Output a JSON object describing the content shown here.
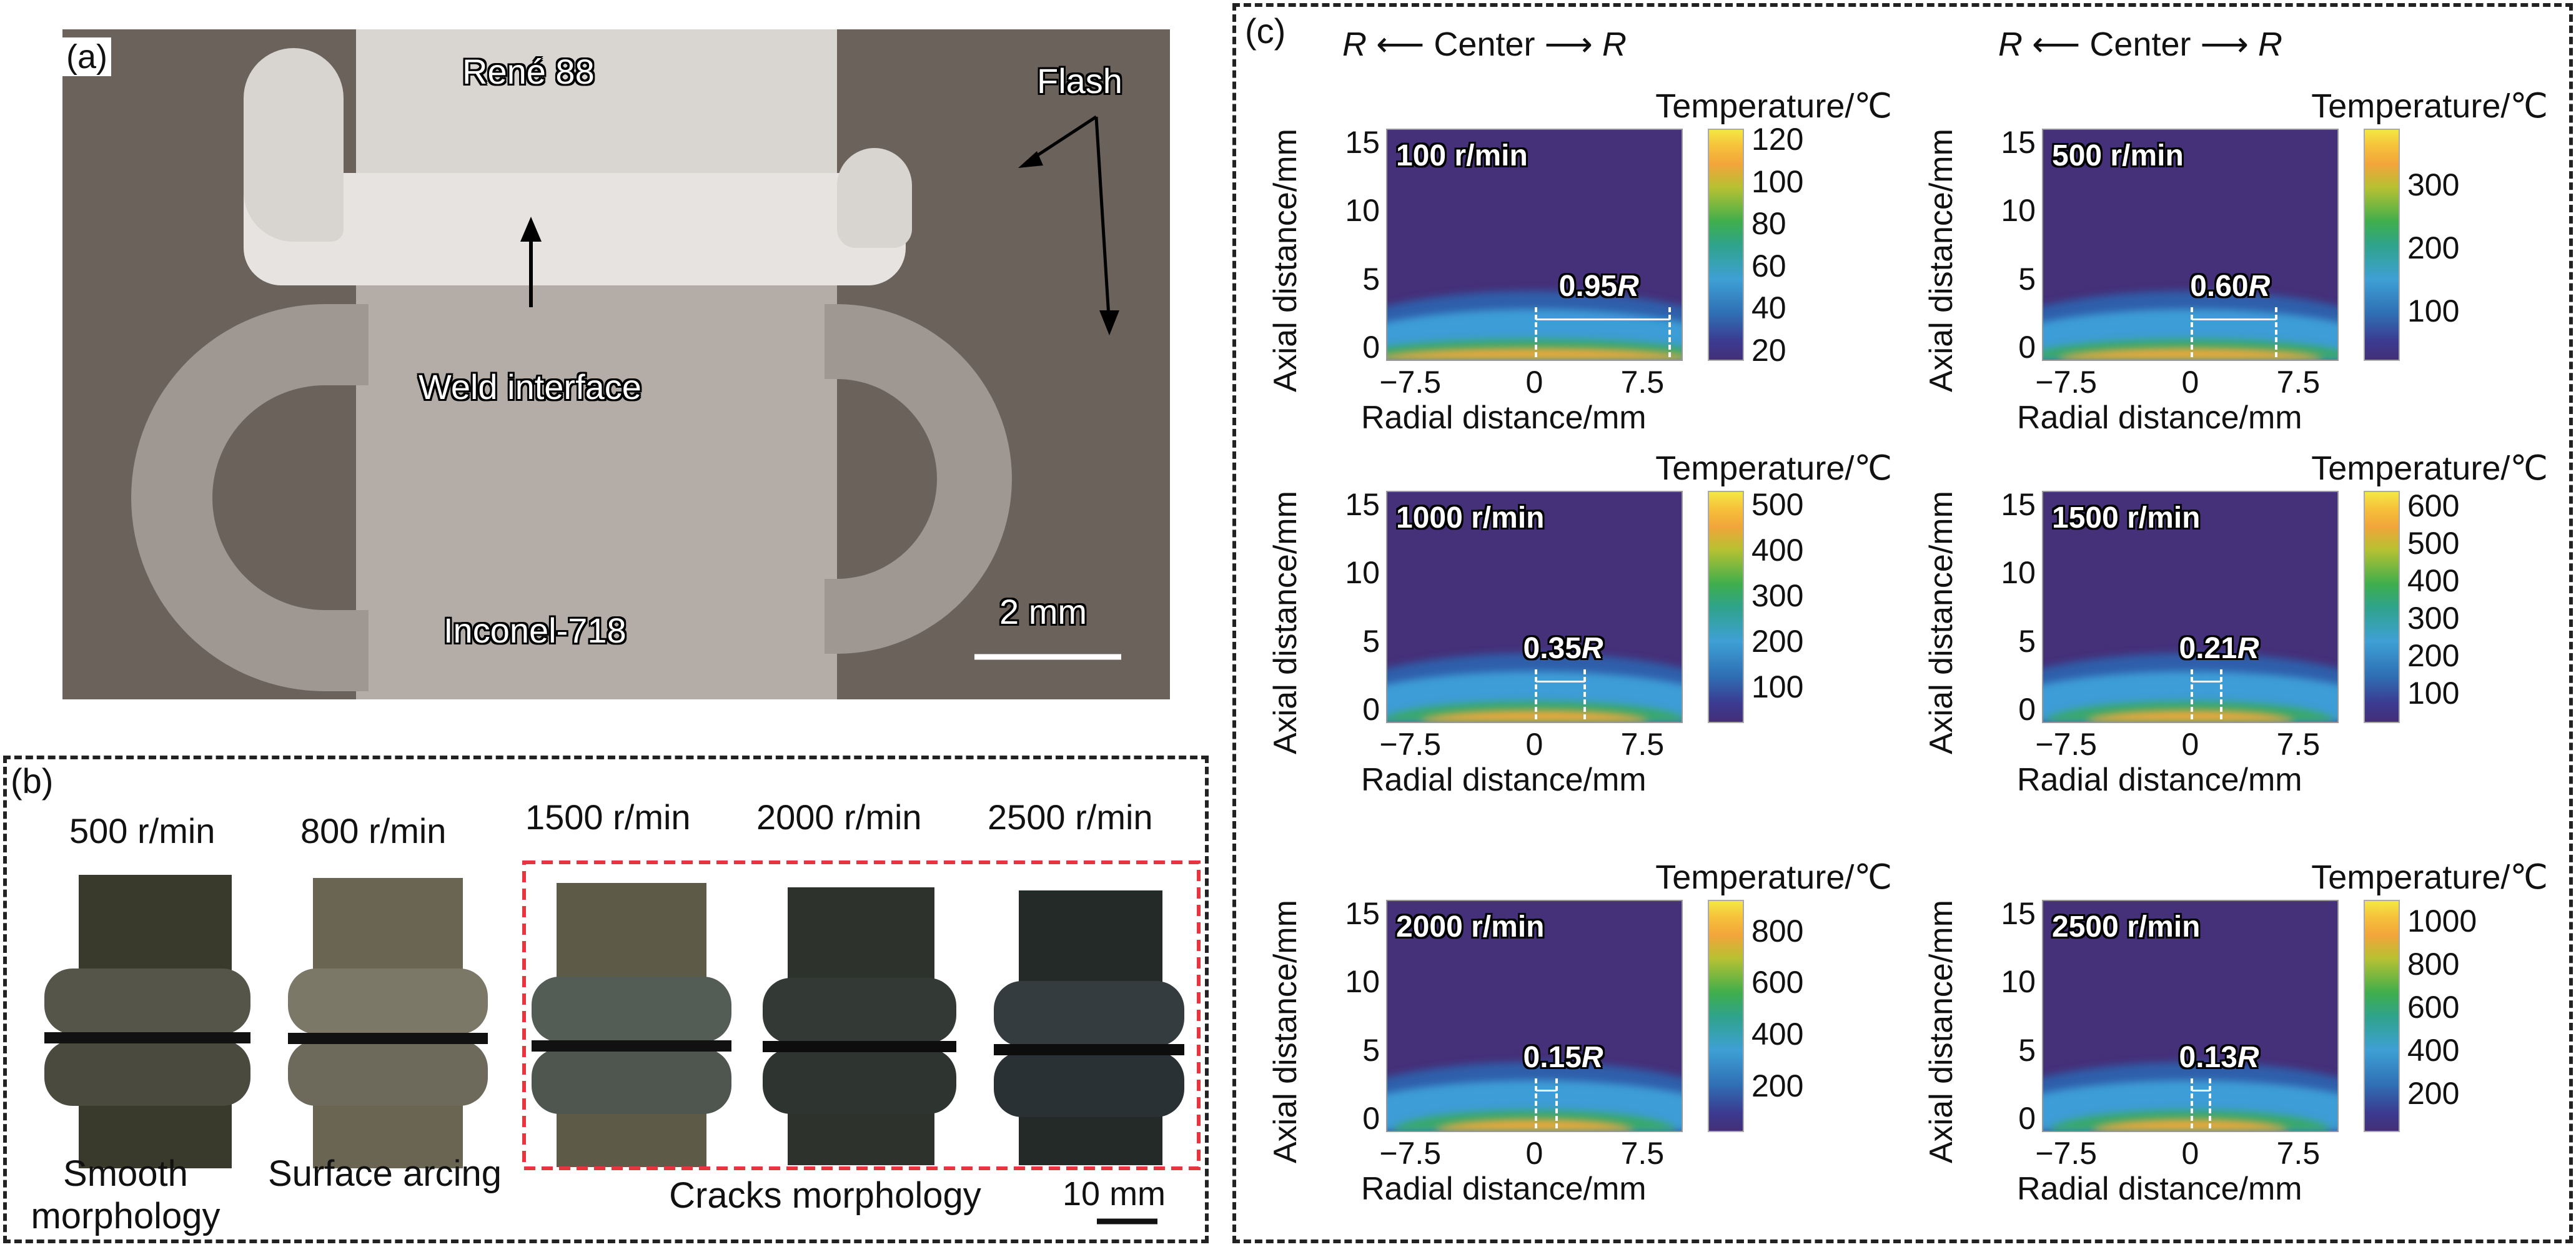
{
  "panel_a": {
    "letter": "(a)",
    "top_material": "René 88",
    "bottom_material": "Inconel-718",
    "interface_label": "Weld interface",
    "flash_label": "Flash",
    "scale_bar": "2 mm"
  },
  "panel_b": {
    "letter": "(b)",
    "samples": [
      {
        "speed": "500 r/min"
      },
      {
        "speed": "800 r/min"
      },
      {
        "speed": "1500 r/min"
      },
      {
        "speed": "2000 r/min"
      },
      {
        "speed": "2500 r/min"
      }
    ],
    "morphologies": {
      "smooth_line1": "Smooth",
      "smooth_line2": "morphology",
      "arcing": "Surface arcing",
      "cracks": "Cracks morphology"
    },
    "scale_bar": "10 mm",
    "highlight_color": "#e8343f"
  },
  "panel_c": {
    "letter": "(c)",
    "direction": {
      "left": "R",
      "center": "Center",
      "right": "R"
    },
    "colorbar_title": "Temperature/℃",
    "xlabel": "Radial distance/mm",
    "ylabel": "Axial distance/mm",
    "x_ticks": [
      "−7.5",
      "0",
      "7.5"
    ],
    "y_ticks": [
      "15",
      "10",
      "5",
      "0"
    ]
  },
  "chart_data": [
    {
      "type": "heatmap",
      "title": "100 r/min",
      "annotation": "0.95",
      "annotation_unit": "R",
      "heat_zone_fraction": 0.95,
      "xlabel": "Radial distance/mm",
      "ylabel": "Axial distance/mm",
      "xlim": [
        -10,
        10
      ],
      "ylim": [
        -1,
        16
      ],
      "colorbar": {
        "label": "Temperature/℃",
        "ticks": [
          120,
          100,
          80,
          60,
          40,
          20
        ],
        "range": [
          15,
          125
        ]
      }
    },
    {
      "type": "heatmap",
      "title": "500 r/min",
      "annotation": "0.60",
      "annotation_unit": "R",
      "heat_zone_fraction": 0.6,
      "xlabel": "Radial distance/mm",
      "ylabel": "Axial distance/mm",
      "xlim": [
        -10,
        10
      ],
      "ylim": [
        -1,
        16
      ],
      "colorbar": {
        "label": "Temperature/℃",
        "ticks": [
          300,
          200,
          100
        ],
        "range": [
          20,
          390
        ]
      }
    },
    {
      "type": "heatmap",
      "title": "1000 r/min",
      "annotation": "0.35",
      "annotation_unit": "R",
      "heat_zone_fraction": 0.35,
      "xlabel": "Radial distance/mm",
      "ylabel": "Axial distance/mm",
      "xlim": [
        -10,
        10
      ],
      "ylim": [
        -1,
        16
      ],
      "colorbar": {
        "label": "Temperature/℃",
        "ticks": [
          500,
          400,
          300,
          200,
          100
        ],
        "range": [
          20,
          530
        ]
      }
    },
    {
      "type": "heatmap",
      "title": "1500 r/min",
      "annotation": "0.21",
      "annotation_unit": "R",
      "heat_zone_fraction": 0.21,
      "xlabel": "Radial distance/mm",
      "ylabel": "Axial distance/mm",
      "xlim": [
        -10,
        10
      ],
      "ylim": [
        -1,
        16
      ],
      "colorbar": {
        "label": "Temperature/℃",
        "ticks": [
          600,
          500,
          400,
          300,
          200,
          100
        ],
        "range": [
          20,
          640
        ]
      }
    },
    {
      "type": "heatmap",
      "title": "2000 r/min",
      "annotation": "0.15",
      "annotation_unit": "R",
      "heat_zone_fraction": 0.15,
      "xlabel": "Radial distance/mm",
      "ylabel": "Axial distance/mm",
      "xlim": [
        -10,
        10
      ],
      "ylim": [
        -1,
        16
      ],
      "colorbar": {
        "label": "Temperature/℃",
        "ticks": [
          800,
          600,
          400,
          200
        ],
        "range": [
          20,
          920
        ]
      }
    },
    {
      "type": "heatmap",
      "title": "2500 r/min",
      "annotation": "0.13",
      "annotation_unit": "R",
      "heat_zone_fraction": 0.13,
      "xlabel": "Radial distance/mm",
      "ylabel": "Axial distance/mm",
      "xlim": [
        -10,
        10
      ],
      "ylim": [
        -1,
        16
      ],
      "colorbar": {
        "label": "Temperature/℃",
        "ticks": [
          1000,
          800,
          600,
          400,
          200
        ],
        "range": [
          20,
          1100
        ]
      }
    }
  ]
}
